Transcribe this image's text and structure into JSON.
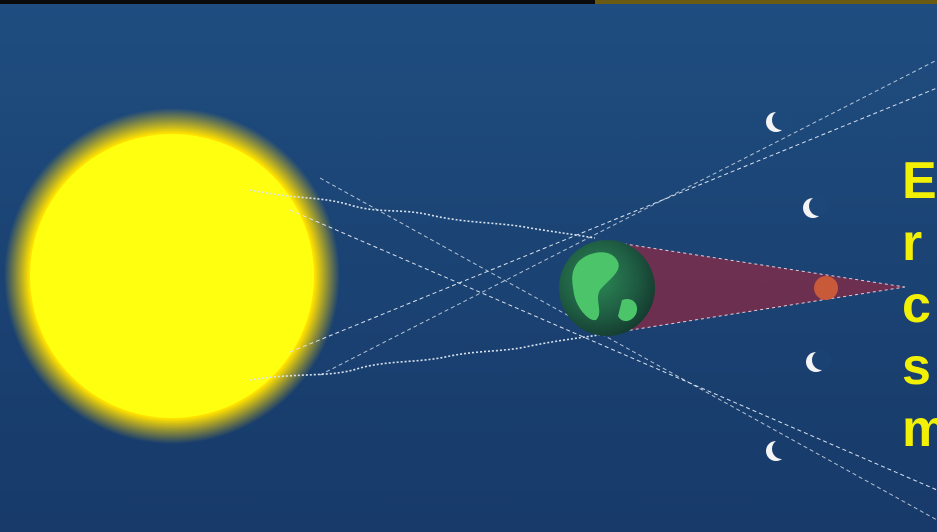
{
  "caption": {
    "lines": [
      "E",
      "r",
      "c",
      "s",
      "m"
    ]
  },
  "colors": {
    "background": "#1b3f72",
    "sun": "#ffff00",
    "sun_glow": "#ffd200",
    "umbra": "#8a2a44",
    "light_rays": "#d9e2ee",
    "caption_text": "#f2f005",
    "moon_lit": "#f4f4f4",
    "moon_eclipsed": "#c85a3a"
  },
  "objects": [
    "sun",
    "earth",
    "moon-eclipsed",
    "moon-crescent"
  ]
}
